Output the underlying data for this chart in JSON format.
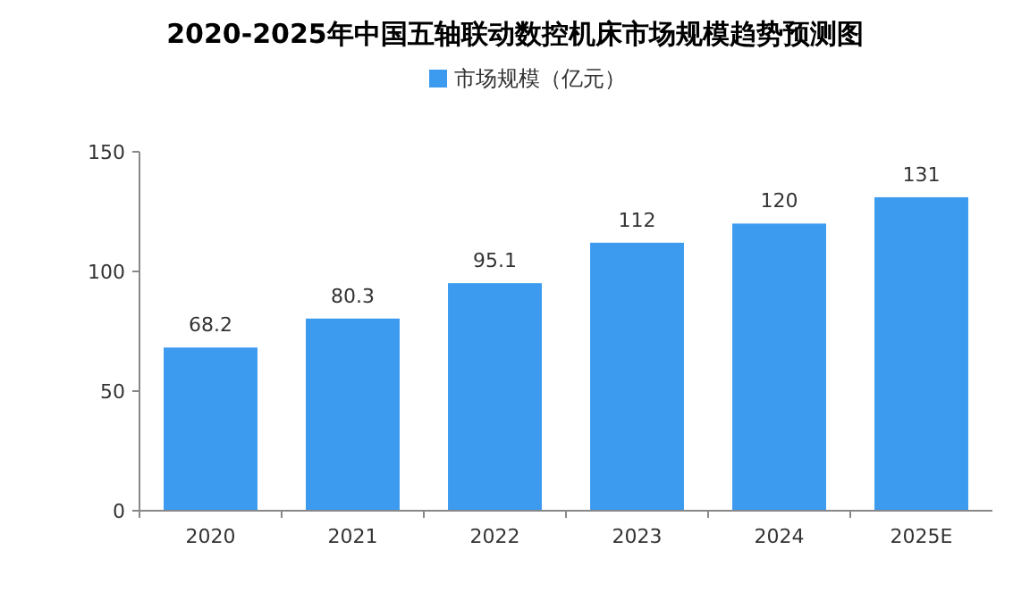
{
  "chart_data": {
    "type": "bar",
    "title": "2020-2025年中国五轴联动数控机床市场规模趋势预测图",
    "categories": [
      "2020",
      "2021",
      "2022",
      "2023",
      "2024",
      "2025E"
    ],
    "series": [
      {
        "name": "市场规模（亿元）",
        "color": "#3d9bef",
        "values": [
          68.2,
          80.3,
          95.1,
          112,
          120,
          131
        ]
      }
    ],
    "ylim": [
      0,
      150
    ],
    "yticks": [
      0,
      50,
      100,
      150
    ],
    "data_labels": true,
    "legend": "top",
    "grid": false
  }
}
